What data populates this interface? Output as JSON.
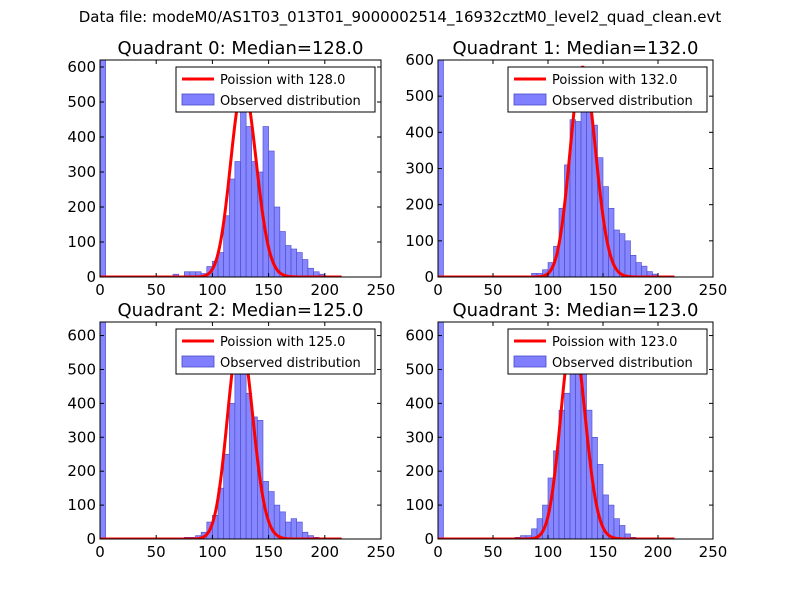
{
  "suptitle": "Data file: modeM0/AS1T03_013T01_9000002514_16932cztM0_level2_quad_clean.evt",
  "colors": {
    "fit": "#ff0000",
    "bar": "#7f7fff",
    "bar_edge": "#4a4ac9",
    "axis": "#000000"
  },
  "chart_data": [
    {
      "type": "bar",
      "title": "Quadrant 0: Median=128.0",
      "median": 128.0,
      "xlim": [
        0,
        250
      ],
      "ylim": [
        0,
        620
      ],
      "xticks": [
        0,
        50,
        100,
        150,
        200,
        250
      ],
      "yticks": [
        0,
        100,
        200,
        300,
        400,
        500,
        600
      ],
      "bin_width": 5,
      "legend": {
        "location": "upper right",
        "entries": [
          "Poission with 128.0",
          "Observed distribution"
        ]
      },
      "bins": [
        {
          "x": 0,
          "y": 620
        },
        {
          "x": 65,
          "y": 8
        },
        {
          "x": 70,
          "y": 3
        },
        {
          "x": 75,
          "y": 15
        },
        {
          "x": 80,
          "y": 15
        },
        {
          "x": 85,
          "y": 15
        },
        {
          "x": 90,
          "y": 10
        },
        {
          "x": 95,
          "y": 30
        },
        {
          "x": 100,
          "y": 45
        },
        {
          "x": 105,
          "y": 70
        },
        {
          "x": 110,
          "y": 175
        },
        {
          "x": 115,
          "y": 280
        },
        {
          "x": 120,
          "y": 330
        },
        {
          "x": 125,
          "y": 545
        },
        {
          "x": 130,
          "y": 430
        },
        {
          "x": 135,
          "y": 330
        },
        {
          "x": 140,
          "y": 300
        },
        {
          "x": 145,
          "y": 430
        },
        {
          "x": 150,
          "y": 360
        },
        {
          "x": 155,
          "y": 200
        },
        {
          "x": 160,
          "y": 130
        },
        {
          "x": 165,
          "y": 90
        },
        {
          "x": 170,
          "y": 80
        },
        {
          "x": 175,
          "y": 70
        },
        {
          "x": 180,
          "y": 50
        },
        {
          "x": 185,
          "y": 25
        },
        {
          "x": 190,
          "y": 15
        },
        {
          "x": 195,
          "y": 8
        },
        {
          "x": 200,
          "y": 3
        }
      ]
    },
    {
      "type": "bar",
      "title": "Quadrant 1: Median=132.0",
      "median": 132.0,
      "xlim": [
        0,
        250
      ],
      "ylim": [
        0,
        600
      ],
      "xticks": [
        0,
        50,
        100,
        150,
        200,
        250
      ],
      "yticks": [
        0,
        100,
        200,
        300,
        400,
        500,
        600
      ],
      "bin_width": 5,
      "legend": {
        "location": "upper right",
        "entries": [
          "Poission with 132.0",
          "Observed distribution"
        ]
      },
      "bins": [
        {
          "x": 0,
          "y": 600
        },
        {
          "x": 85,
          "y": 10
        },
        {
          "x": 90,
          "y": 10
        },
        {
          "x": 95,
          "y": 20
        },
        {
          "x": 100,
          "y": 40
        },
        {
          "x": 105,
          "y": 85
        },
        {
          "x": 110,
          "y": 190
        },
        {
          "x": 115,
          "y": 310
        },
        {
          "x": 120,
          "y": 435
        },
        {
          "x": 125,
          "y": 430
        },
        {
          "x": 130,
          "y": 580
        },
        {
          "x": 135,
          "y": 470
        },
        {
          "x": 140,
          "y": 420
        },
        {
          "x": 145,
          "y": 330
        },
        {
          "x": 150,
          "y": 250
        },
        {
          "x": 155,
          "y": 190
        },
        {
          "x": 160,
          "y": 130
        },
        {
          "x": 165,
          "y": 120
        },
        {
          "x": 170,
          "y": 100
        },
        {
          "x": 175,
          "y": 60
        },
        {
          "x": 180,
          "y": 40
        },
        {
          "x": 185,
          "y": 30
        },
        {
          "x": 190,
          "y": 15
        },
        {
          "x": 195,
          "y": 8
        },
        {
          "x": 200,
          "y": 3
        }
      ]
    },
    {
      "type": "bar",
      "title": "Quadrant 2: Median=125.0",
      "median": 125.0,
      "xlim": [
        0,
        250
      ],
      "ylim": [
        0,
        640
      ],
      "xticks": [
        0,
        50,
        100,
        150,
        200,
        250
      ],
      "yticks": [
        0,
        100,
        200,
        300,
        400,
        500,
        600
      ],
      "bin_width": 5,
      "legend": {
        "location": "upper right",
        "entries": [
          "Poission with 125.0",
          "Observed distribution"
        ]
      },
      "bins": [
        {
          "x": 0,
          "y": 640
        },
        {
          "x": 75,
          "y": 5
        },
        {
          "x": 80,
          "y": 5
        },
        {
          "x": 85,
          "y": 10
        },
        {
          "x": 90,
          "y": 20
        },
        {
          "x": 95,
          "y": 50
        },
        {
          "x": 100,
          "y": 70
        },
        {
          "x": 105,
          "y": 150
        },
        {
          "x": 110,
          "y": 250
        },
        {
          "x": 115,
          "y": 400
        },
        {
          "x": 120,
          "y": 500
        },
        {
          "x": 125,
          "y": 600
        },
        {
          "x": 130,
          "y": 430
        },
        {
          "x": 135,
          "y": 360
        },
        {
          "x": 140,
          "y": 350
        },
        {
          "x": 145,
          "y": 170
        },
        {
          "x": 150,
          "y": 140
        },
        {
          "x": 155,
          "y": 100
        },
        {
          "x": 160,
          "y": 80
        },
        {
          "x": 165,
          "y": 50
        },
        {
          "x": 170,
          "y": 60
        },
        {
          "x": 175,
          "y": 50
        },
        {
          "x": 180,
          "y": 20
        },
        {
          "x": 185,
          "y": 10
        },
        {
          "x": 190,
          "y": 5
        }
      ]
    },
    {
      "type": "bar",
      "title": "Quadrant 3: Median=123.0",
      "median": 123.0,
      "xlim": [
        0,
        250
      ],
      "ylim": [
        0,
        640
      ],
      "xticks": [
        0,
        50,
        100,
        150,
        200,
        250
      ],
      "yticks": [
        0,
        100,
        200,
        300,
        400,
        500,
        600
      ],
      "bin_width": 5,
      "legend": {
        "location": "upper right",
        "entries": [
          "Poission with 123.0",
          "Observed distribution"
        ]
      },
      "bins": [
        {
          "x": 0,
          "y": 640
        },
        {
          "x": 30,
          "y": 3
        },
        {
          "x": 70,
          "y": 5
        },
        {
          "x": 75,
          "y": 10
        },
        {
          "x": 80,
          "y": 10
        },
        {
          "x": 85,
          "y": 30
        },
        {
          "x": 90,
          "y": 60
        },
        {
          "x": 95,
          "y": 100
        },
        {
          "x": 100,
          "y": 180
        },
        {
          "x": 105,
          "y": 260
        },
        {
          "x": 110,
          "y": 380
        },
        {
          "x": 115,
          "y": 430
        },
        {
          "x": 120,
          "y": 560
        },
        {
          "x": 125,
          "y": 600
        },
        {
          "x": 130,
          "y": 500
        },
        {
          "x": 135,
          "y": 380
        },
        {
          "x": 140,
          "y": 300
        },
        {
          "x": 145,
          "y": 220
        },
        {
          "x": 150,
          "y": 130
        },
        {
          "x": 155,
          "y": 100
        },
        {
          "x": 160,
          "y": 60
        },
        {
          "x": 165,
          "y": 40
        },
        {
          "x": 170,
          "y": 15
        },
        {
          "x": 175,
          "y": 5
        }
      ]
    }
  ]
}
